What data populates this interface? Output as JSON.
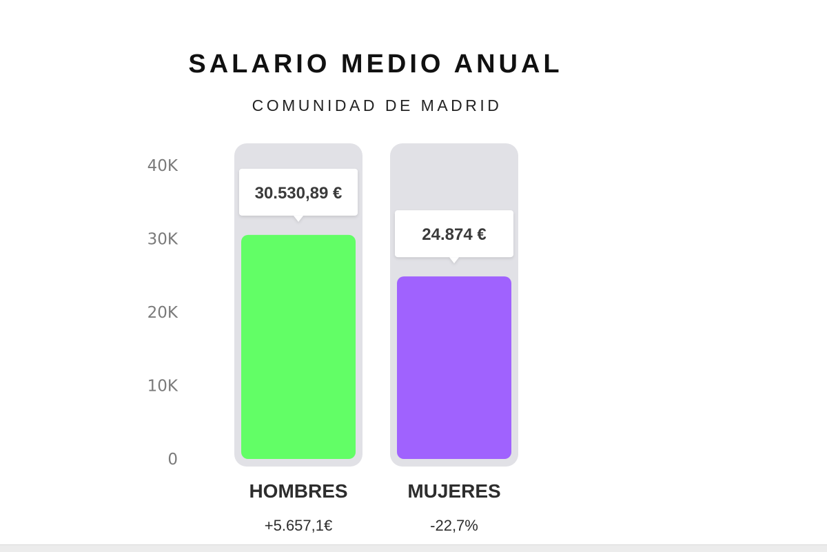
{
  "chart_data": {
    "type": "bar",
    "title": "SALARIO MEDIO ANUAL",
    "subtitle": "COMUNIDAD DE MADRID",
    "categories": [
      "HOMBRES",
      "MUJERES"
    ],
    "values": [
      30530.89,
      24874
    ],
    "value_labels": [
      "30.530,89 €",
      "24.874 €"
    ],
    "notes": [
      "+5.657,1€",
      "-22,7%"
    ],
    "colors": [
      "#62fe66",
      "#a062fe"
    ],
    "track_color": "#e1e1e6",
    "ylim": [
      0,
      40000
    ],
    "yticks": [
      0,
      10000,
      20000,
      30000,
      40000
    ],
    "ytick_labels": [
      "0",
      "10K",
      "20K",
      "30K",
      "40K"
    ],
    "grid": false,
    "legend": "none"
  }
}
